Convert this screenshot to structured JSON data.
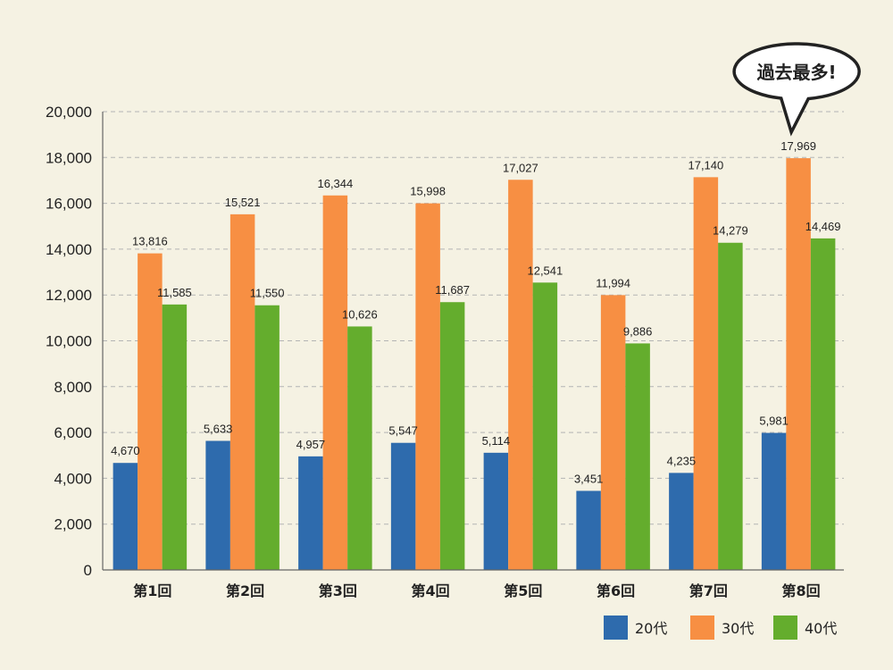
{
  "chart_data": {
    "type": "bar",
    "categories": [
      "第1回",
      "第2回",
      "第3回",
      "第4回",
      "第5回",
      "第6回",
      "第7回",
      "第8回"
    ],
    "series": [
      {
        "name": "20代",
        "color": "#2e6bad",
        "values": [
          4670,
          5633,
          4957,
          5547,
          5114,
          3451,
          4235,
          5981
        ],
        "labels": [
          "4,670",
          "5,633",
          "4,957",
          "5,547",
          "5,114",
          "3,451",
          "4,235",
          "5,981"
        ]
      },
      {
        "name": "30代",
        "color": "#f78f43",
        "values": [
          13816,
          15521,
          16344,
          15998,
          17027,
          11994,
          17140,
          17969
        ],
        "labels": [
          "13,816",
          "15,521",
          "16,344",
          "15,998",
          "17,027",
          "11,994",
          "17,140",
          "17,969"
        ]
      },
      {
        "name": "40代",
        "color": "#64ad2d",
        "values": [
          11585,
          11550,
          10626,
          11687,
          12541,
          9886,
          14279,
          14469
        ],
        "labels": [
          "11,585",
          "11,550",
          "10,626",
          "11,687",
          "12,541",
          "9,886",
          "14,279",
          "14,469"
        ]
      }
    ],
    "ylim": [
      0,
      20000
    ],
    "yticks": [
      0,
      2000,
      4000,
      6000,
      8000,
      10000,
      12000,
      14000,
      16000,
      18000,
      20000
    ],
    "ytick_labels": [
      "0",
      "2,000",
      "4,000",
      "6,000",
      "8,000",
      "10,000",
      "12,000",
      "14,000",
      "16,000",
      "18,000",
      "20,000"
    ],
    "grid": true,
    "legend_position": "bottom-right",
    "annotation": {
      "text": "過去最多!",
      "category_index": 7,
      "series_index": 1
    }
  }
}
